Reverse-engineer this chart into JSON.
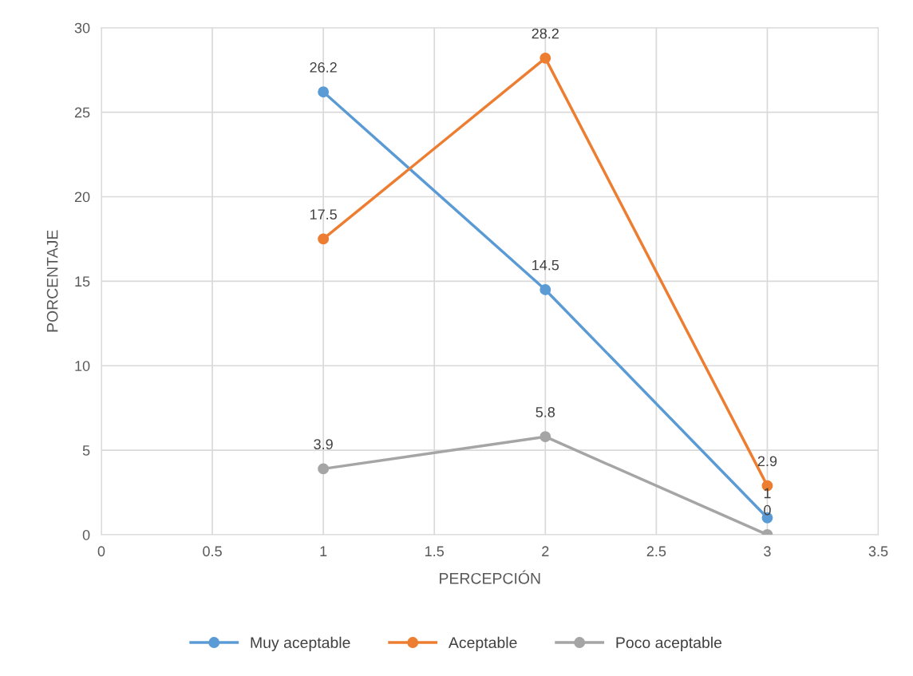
{
  "chart_data": {
    "type": "line",
    "xlabel": "PERCEPCIÓN",
    "ylabel": "PORCENTAJE",
    "x": [
      1,
      2,
      3
    ],
    "series": [
      {
        "name": "Muy aceptable",
        "color": "#5b9bd5",
        "values": [
          26.2,
          14.5,
          1
        ]
      },
      {
        "name": "Aceptable",
        "color": "#ed7d31",
        "values": [
          17.5,
          28.2,
          2.9
        ]
      },
      {
        "name": "Poco aceptable",
        "color": "#a5a5a5",
        "values": [
          3.9,
          5.8,
          0
        ]
      }
    ],
    "xlim": [
      0,
      3.5
    ],
    "xticks": [
      0,
      0.5,
      1,
      1.5,
      2,
      2.5,
      3,
      3.5
    ],
    "ylim": [
      0,
      30
    ],
    "yticks": [
      0,
      5,
      10,
      15,
      20,
      25,
      30
    ],
    "grid": true,
    "legend": "bottom",
    "marker": "circle",
    "line_style": "solid",
    "data_labels": true
  }
}
